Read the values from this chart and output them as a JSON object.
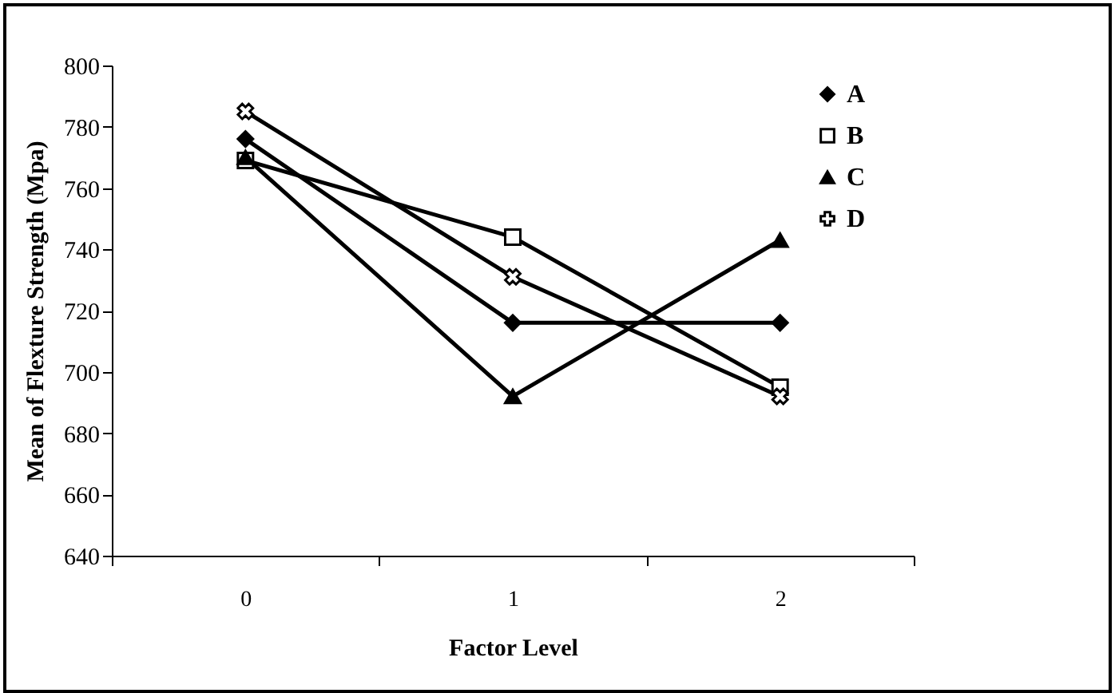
{
  "chart_data": {
    "type": "line",
    "xlabel": "Factor Level",
    "ylabel": "Mean of Flexture Strength (Mpa)",
    "categories": [
      "0",
      "1",
      "2"
    ],
    "series": [
      {
        "name": "A",
        "color": "#000000",
        "marker": "diamond",
        "values": [
          776,
          716,
          716
        ]
      },
      {
        "name": "B",
        "color": "#000000",
        "marker": "square",
        "values": [
          769,
          744,
          695
        ]
      },
      {
        "name": "C",
        "color": "#000000",
        "marker": "triangle",
        "values": [
          770,
          692,
          743
        ]
      },
      {
        "name": "D",
        "color": "#000000",
        "marker": "cross",
        "values": [
          785,
          731,
          692
        ]
      }
    ],
    "ylim": [
      640,
      800
    ],
    "yticks": [
      640,
      660,
      680,
      700,
      720,
      740,
      760,
      780,
      800
    ],
    "grid": false,
    "legend": "top right"
  }
}
